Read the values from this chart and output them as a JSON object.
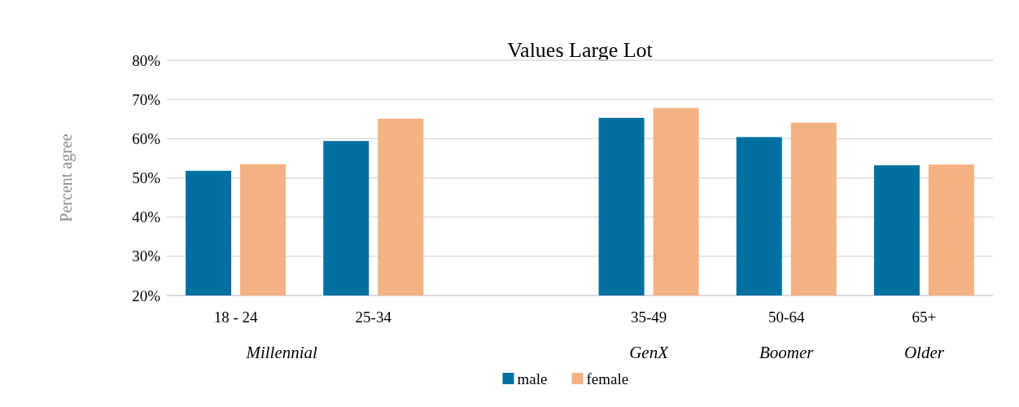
{
  "chart_data": {
    "type": "bar",
    "title": "Values Large Lot",
    "ylabel": "Percent agree",
    "categories": [
      "18 - 24",
      "25-34",
      null,
      "35-49",
      "50-64",
      "65+"
    ],
    "series": [
      {
        "name": "male",
        "color": "#0070a0",
        "values": [
          51.8,
          59.4,
          null,
          65.3,
          60.4,
          53.2
        ]
      },
      {
        "name": "female",
        "color": "#f4b183",
        "values": [
          53.5,
          65.1,
          null,
          67.8,
          64.1,
          53.4
        ]
      }
    ],
    "ylim": [
      20,
      80
    ],
    "yticks": [
      {
        "value": 20,
        "label": "20%"
      },
      {
        "value": 30,
        "label": "30%"
      },
      {
        "value": 40,
        "label": "40%"
      },
      {
        "value": 50,
        "label": "50%"
      },
      {
        "value": 60,
        "label": "60%"
      },
      {
        "value": 70,
        "label": "70%"
      },
      {
        "value": 80,
        "label": "80%"
      }
    ],
    "grid": "y",
    "legend": "bottom",
    "annotations": [
      "Millennial",
      "GenX",
      "Boomer",
      "Older"
    ]
  }
}
